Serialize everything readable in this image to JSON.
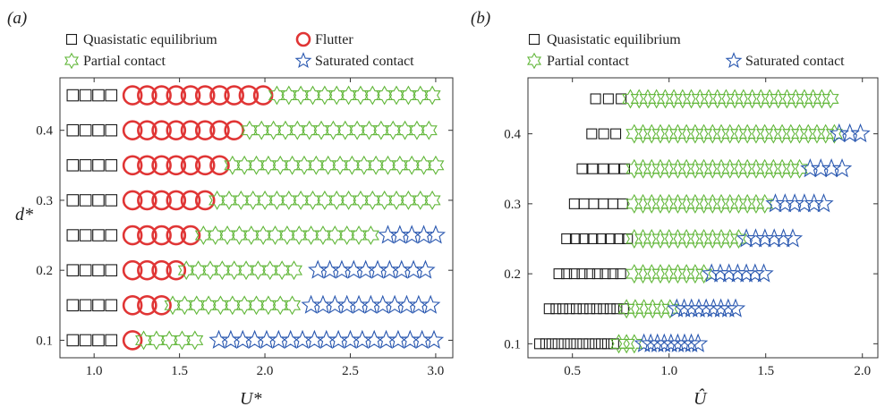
{
  "colors": {
    "quasistatic": "#1a1a1a",
    "flutter": "#e03535",
    "partial": "#62b73a",
    "saturated": "#2a58b0",
    "frame": "#333333"
  },
  "chart_data": [
    {
      "panel_label": "(a)",
      "type": "scatter",
      "xlabel": "U*",
      "ylabel": "d*",
      "xlim": [
        0.8,
        3.1
      ],
      "ylim": [
        0.075,
        0.475
      ],
      "xticks": [
        "1.0",
        "1.5",
        "2.0",
        "2.5",
        "3.0"
      ],
      "xtick_values": [
        1.0,
        1.5,
        2.0,
        2.5,
        3.0
      ],
      "yticks": [
        "0.1",
        "0.2",
        "0.3",
        "0.4"
      ],
      "ytick_values": [
        0.1,
        0.2,
        0.3,
        0.4
      ],
      "legend": [
        {
          "label": "Quasistatic equilibrium",
          "marker": "square",
          "color_key": "quasistatic"
        },
        {
          "label": "Flutter",
          "marker": "circle",
          "color_key": "flutter"
        },
        {
          "label": "Partial contact",
          "marker": "hexagram",
          "color_key": "partial"
        },
        {
          "label": "Saturated contact",
          "marker": "star",
          "color_key": "saturated"
        }
      ],
      "series": [
        {
          "name": "Quasistatic equilibrium",
          "marker": "square",
          "color_key": "quasistatic",
          "rows": [
            {
              "y": 0.1,
              "x": [
                0.875,
                0.95,
                1.025,
                1.1
              ]
            },
            {
              "y": 0.15,
              "x": [
                0.875,
                0.95,
                1.025,
                1.1
              ]
            },
            {
              "y": 0.2,
              "x": [
                0.875,
                0.95,
                1.025,
                1.1
              ]
            },
            {
              "y": 0.25,
              "x": [
                0.875,
                0.95,
                1.025,
                1.1
              ]
            },
            {
              "y": 0.3,
              "x": [
                0.875,
                0.95,
                1.025,
                1.1
              ]
            },
            {
              "y": 0.35,
              "x": [
                0.875,
                0.95,
                1.025,
                1.1
              ]
            },
            {
              "y": 0.4,
              "x": [
                0.875,
                0.95,
                1.025,
                1.1
              ]
            },
            {
              "y": 0.45,
              "x": [
                0.875,
                0.95,
                1.025,
                1.1
              ]
            }
          ]
        },
        {
          "name": "Flutter",
          "marker": "circle",
          "color_key": "flutter",
          "rows": [
            {
              "y": 0.1,
              "x": [
                1.225
              ]
            },
            {
              "y": 0.15,
              "x": [
                1.225,
                1.31,
                1.395
              ]
            },
            {
              "y": 0.2,
              "x": [
                1.225,
                1.31,
                1.395,
                1.48
              ]
            },
            {
              "y": 0.25,
              "x": [
                1.225,
                1.31,
                1.395,
                1.48,
                1.565
              ]
            },
            {
              "y": 0.3,
              "x": [
                1.225,
                1.31,
                1.395,
                1.48,
                1.565,
                1.65
              ]
            },
            {
              "y": 0.35,
              "x": [
                1.225,
                1.31,
                1.395,
                1.48,
                1.565,
                1.65,
                1.735
              ]
            },
            {
              "y": 0.4,
              "x": [
                1.225,
                1.31,
                1.395,
                1.48,
                1.565,
                1.65,
                1.735,
                1.82
              ]
            },
            {
              "y": 0.45,
              "x": [
                1.225,
                1.31,
                1.395,
                1.48,
                1.565,
                1.65,
                1.735,
                1.82,
                1.905,
                1.99
              ]
            }
          ]
        },
        {
          "name": "Partial contact",
          "marker": "hexagram",
          "color_key": "partial",
          "rows": [
            {
              "y": 0.1,
              "range": [
                1.29,
                1.64
              ],
              "step": 0.075
            },
            {
              "y": 0.15,
              "range": [
                1.46,
                2.18
              ],
              "step": 0.07
            },
            {
              "y": 0.2,
              "range": [
                1.54,
                2.23
              ],
              "step": 0.07
            },
            {
              "y": 0.25,
              "range": [
                1.64,
                2.62
              ],
              "step": 0.07
            },
            {
              "y": 0.3,
              "range": [
                1.72,
                3.0
              ],
              "step": 0.07
            },
            {
              "y": 0.35,
              "range": [
                1.81,
                3.0
              ],
              "step": 0.07
            },
            {
              "y": 0.4,
              "range": [
                1.91,
                3.0
              ],
              "step": 0.07
            },
            {
              "y": 0.45,
              "range": [
                2.07,
                3.0
              ],
              "step": 0.07
            }
          ]
        },
        {
          "name": "Saturated contact",
          "marker": "star",
          "color_key": "saturated",
          "rows": [
            {
              "y": 0.1,
              "range": [
                1.73,
                3.0
              ],
              "step": 0.07
            },
            {
              "y": 0.15,
              "range": [
                2.27,
                3.0
              ],
              "step": 0.07
            },
            {
              "y": 0.2,
              "range": [
                2.31,
                3.0
              ],
              "step": 0.07
            },
            {
              "y": 0.25,
              "range": [
                2.72,
                3.0
              ],
              "step": 0.07
            }
          ]
        }
      ]
    },
    {
      "panel_label": "(b)",
      "type": "scatter",
      "xlabel": "Û",
      "ylabel": "",
      "xlim": [
        0.27,
        2.08
      ],
      "ylim": [
        0.08,
        0.48
      ],
      "xticks": [
        "0.5",
        "1.0",
        "1.5",
        "2.0"
      ],
      "xtick_values": [
        0.5,
        1.0,
        1.5,
        2.0
      ],
      "yticks": [
        "0.1",
        "0.2",
        "0.3",
        "0.4"
      ],
      "ytick_values": [
        0.1,
        0.2,
        0.3,
        0.4
      ],
      "legend": [
        {
          "label": "Quasistatic equilibrium",
          "marker": "square",
          "color_key": "quasistatic"
        },
        {
          "label": "Partial contact",
          "marker": "hexagram",
          "color_key": "partial"
        },
        {
          "label": "Saturated contact",
          "marker": "star",
          "color_key": "saturated"
        }
      ],
      "series": [
        {
          "name": "Quasistatic equilibrium",
          "marker": "square",
          "color_key": "quasistatic",
          "rows": [
            {
              "y": 0.1,
              "range": [
                0.33,
                0.73
              ],
              "step": 0.032
            },
            {
              "y": 0.15,
              "range": [
                0.38,
                0.77
              ],
              "step": 0.035
            },
            {
              "y": 0.2,
              "range": [
                0.43,
                0.78
              ],
              "step": 0.04
            },
            {
              "y": 0.25,
              "range": [
                0.47,
                0.79
              ],
              "step": 0.045
            },
            {
              "y": 0.3,
              "range": [
                0.51,
                0.77
              ],
              "step": 0.05
            },
            {
              "y": 0.35,
              "range": [
                0.55,
                0.78
              ],
              "step": 0.055
            },
            {
              "y": 0.4,
              "range": [
                0.6,
                0.78
              ],
              "step": 0.062
            },
            {
              "y": 0.45,
              "range": [
                0.62,
                0.76
              ],
              "step": 0.066
            }
          ]
        },
        {
          "name": "Partial contact",
          "marker": "hexagram",
          "color_key": "partial",
          "rows": [
            {
              "y": 0.1,
              "range": [
                0.74,
                0.84
              ],
              "step": 0.04
            },
            {
              "y": 0.15,
              "range": [
                0.78,
                1.02
              ],
              "step": 0.045
            },
            {
              "y": 0.2,
              "range": [
                0.82,
                1.2
              ],
              "step": 0.045
            },
            {
              "y": 0.25,
              "range": [
                0.82,
                1.38
              ],
              "step": 0.045
            },
            {
              "y": 0.3,
              "range": [
                0.82,
                1.53
              ],
              "step": 0.045
            },
            {
              "y": 0.35,
              "range": [
                0.82,
                1.7
              ],
              "step": 0.045
            },
            {
              "y": 0.4,
              "range": [
                0.82,
                1.86
              ],
              "step": 0.045
            },
            {
              "y": 0.45,
              "range": [
                0.8,
                1.86
              ],
              "step": 0.045
            }
          ]
        },
        {
          "name": "Saturated contact",
          "marker": "star",
          "color_key": "saturated",
          "rows": [
            {
              "y": 0.1,
              "range": [
                0.87,
                1.17
              ],
              "step": 0.035
            },
            {
              "y": 0.15,
              "range": [
                1.04,
                1.35
              ],
              "step": 0.038
            },
            {
              "y": 0.2,
              "range": [
                1.22,
                1.5
              ],
              "step": 0.045
            },
            {
              "y": 0.25,
              "range": [
                1.4,
                1.66
              ],
              "step": 0.048
            },
            {
              "y": 0.3,
              "range": [
                1.55,
                1.81
              ],
              "step": 0.05
            },
            {
              "y": 0.35,
              "range": [
                1.73,
                1.9
              ],
              "step": 0.055
            },
            {
              "y": 0.4,
              "range": [
                1.88,
                2.03
              ],
              "step": 0.055
            }
          ]
        }
      ]
    }
  ]
}
